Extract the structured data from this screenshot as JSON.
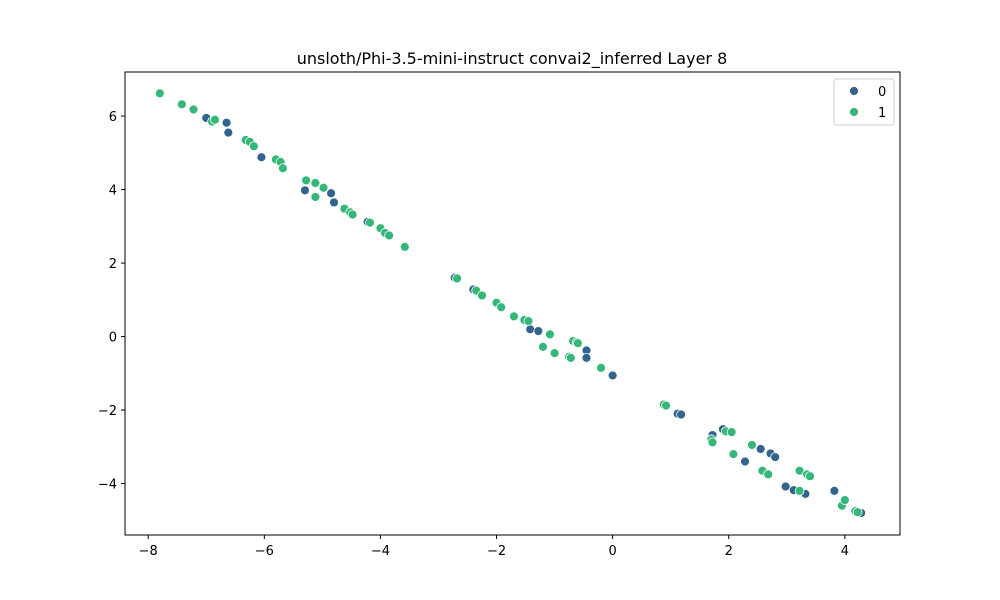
{
  "chart_data": {
    "type": "scatter",
    "title": "unsloth/Phi-3.5-mini-instruct convai2_inferred Layer 8",
    "xlabel": "",
    "ylabel": "",
    "xlim": [
      -8.4,
      4.95
    ],
    "ylim": [
      -5.4,
      7.2
    ],
    "xticks": [
      -8,
      -6,
      -4,
      -2,
      0,
      2,
      4
    ],
    "yticks": [
      -4,
      -2,
      0,
      2,
      4,
      6
    ],
    "xtick_labels": [
      "−8",
      "−6",
      "−4",
      "−2",
      "0",
      "2",
      "4"
    ],
    "ytick_labels": [
      "−4",
      "−2",
      "0",
      "2",
      "4",
      "6"
    ],
    "grid": false,
    "legend": {
      "position": "top-right"
    },
    "series": [
      {
        "name": "0",
        "color": "#32648e",
        "points": [
          [
            -7.0,
            5.95
          ],
          [
            -6.65,
            5.82
          ],
          [
            -6.62,
            5.55
          ],
          [
            -6.05,
            4.88
          ],
          [
            -5.3,
            3.98
          ],
          [
            -4.85,
            3.9
          ],
          [
            -4.8,
            3.65
          ],
          [
            -4.22,
            3.12
          ],
          [
            -2.72,
            1.6
          ],
          [
            -2.4,
            1.28
          ],
          [
            -1.42,
            0.2
          ],
          [
            -1.28,
            0.15
          ],
          [
            -0.45,
            -0.38
          ],
          [
            -0.45,
            -0.58
          ],
          [
            0.0,
            -1.06
          ],
          [
            1.12,
            -2.1
          ],
          [
            1.18,
            -2.12
          ],
          [
            1.72,
            -2.68
          ],
          [
            1.9,
            -2.52
          ],
          [
            2.28,
            -3.4
          ],
          [
            2.55,
            -3.06
          ],
          [
            2.72,
            -3.18
          ],
          [
            2.8,
            -3.28
          ],
          [
            2.98,
            -4.08
          ],
          [
            3.12,
            -4.18
          ],
          [
            3.32,
            -4.28
          ],
          [
            3.82,
            -4.2
          ],
          [
            4.28,
            -4.8
          ]
        ]
      },
      {
        "name": "1",
        "color": "#35b779",
        "points": [
          [
            -7.8,
            6.62
          ],
          [
            -7.42,
            6.32
          ],
          [
            -7.22,
            6.18
          ],
          [
            -6.9,
            5.85
          ],
          [
            -6.85,
            5.9
          ],
          [
            -6.32,
            5.35
          ],
          [
            -6.25,
            5.3
          ],
          [
            -6.18,
            5.18
          ],
          [
            -5.8,
            4.82
          ],
          [
            -5.72,
            4.75
          ],
          [
            -5.68,
            4.58
          ],
          [
            -5.28,
            4.25
          ],
          [
            -5.12,
            4.18
          ],
          [
            -5.12,
            3.8
          ],
          [
            -4.98,
            4.05
          ],
          [
            -4.62,
            3.48
          ],
          [
            -4.52,
            3.38
          ],
          [
            -4.48,
            3.32
          ],
          [
            -4.18,
            3.1
          ],
          [
            -4.0,
            2.95
          ],
          [
            -3.92,
            2.82
          ],
          [
            -3.85,
            2.75
          ],
          [
            -3.58,
            2.44
          ],
          [
            -2.68,
            1.58
          ],
          [
            -2.35,
            1.25
          ],
          [
            -2.25,
            1.12
          ],
          [
            -2.0,
            0.92
          ],
          [
            -1.92,
            0.8
          ],
          [
            -1.7,
            0.55
          ],
          [
            -1.52,
            0.45
          ],
          [
            -1.45,
            0.42
          ],
          [
            -1.08,
            0.06
          ],
          [
            -1.2,
            -0.28
          ],
          [
            -1.0,
            -0.45
          ],
          [
            -0.75,
            -0.55
          ],
          [
            -0.72,
            -0.58
          ],
          [
            -0.68,
            -0.12
          ],
          [
            -0.62,
            -0.15
          ],
          [
            -0.6,
            -0.18
          ],
          [
            -0.2,
            -0.85
          ],
          [
            0.88,
            -1.85
          ],
          [
            0.92,
            -1.88
          ],
          [
            1.7,
            -2.8
          ],
          [
            1.72,
            -2.88
          ],
          [
            1.95,
            -2.58
          ],
          [
            2.05,
            -2.6
          ],
          [
            2.08,
            -3.2
          ],
          [
            2.4,
            -2.95
          ],
          [
            2.58,
            -3.65
          ],
          [
            2.68,
            -3.75
          ],
          [
            3.22,
            -3.65
          ],
          [
            3.22,
            -4.2
          ],
          [
            3.35,
            -3.75
          ],
          [
            3.4,
            -3.8
          ],
          [
            3.95,
            -4.6
          ],
          [
            4.0,
            -4.45
          ],
          [
            4.18,
            -4.75
          ],
          [
            4.22,
            -4.78
          ]
        ]
      }
    ]
  }
}
